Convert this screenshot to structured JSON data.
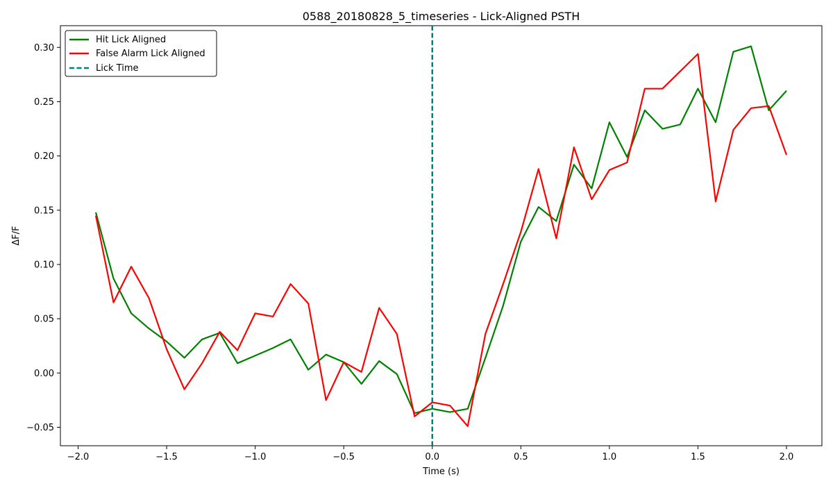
{
  "chart_data": {
    "type": "line",
    "title": "0588_20180828_5_timeseries - Lick-Aligned PSTH",
    "xlabel": "Time (s)",
    "ylabel": "ΔF/F",
    "xlim": [
      -2.1,
      2.2
    ],
    "ylim": [
      -0.067,
      0.32
    ],
    "x_ticks": [
      -2.0,
      -1.5,
      -1.0,
      -0.5,
      0.0,
      0.5,
      1.0,
      1.5,
      2.0
    ],
    "x_tick_labels": [
      "−2.0",
      "−1.5",
      "−1.0",
      "−0.5",
      "0.0",
      "0.5",
      "1.0",
      "1.5",
      "2.0"
    ],
    "y_ticks": [
      -0.05,
      0.0,
      0.05,
      0.1,
      0.15,
      0.2,
      0.25,
      0.3
    ],
    "y_tick_labels": [
      "−0.05",
      "0.00",
      "0.05",
      "0.10",
      "0.15",
      "0.20",
      "0.25",
      "0.30"
    ],
    "grid": false,
    "legend_position": "top-left",
    "x": [
      -1.9,
      -1.8,
      -1.7,
      -1.6,
      -1.5,
      -1.4,
      -1.3,
      -1.2,
      -1.1,
      -1.0,
      -0.9,
      -0.8,
      -0.7,
      -0.6,
      -0.5,
      -0.4,
      -0.3,
      -0.2,
      -0.1,
      0.0,
      0.1,
      0.2,
      0.3,
      0.4,
      0.5,
      0.6,
      0.7,
      0.8,
      0.9,
      1.0,
      1.1,
      1.2,
      1.3,
      1.4,
      1.5,
      1.6,
      1.7,
      1.8,
      1.9,
      2.0
    ],
    "series": [
      {
        "name": "Hit Lick Aligned",
        "color": "#008000",
        "style": "solid",
        "values": [
          0.148,
          0.087,
          0.055,
          0.041,
          0.029,
          0.014,
          0.031,
          0.037,
          0.009,
          0.016,
          0.023,
          0.031,
          0.003,
          0.017,
          0.01,
          -0.01,
          0.011,
          -0.001,
          -0.037,
          -0.033,
          -0.036,
          -0.033,
          0.014,
          0.062,
          0.121,
          0.153,
          0.14,
          0.192,
          0.17,
          0.231,
          0.199,
          0.242,
          0.225,
          0.229,
          0.262,
          0.231,
          0.296,
          0.301,
          0.242,
          0.26
        ]
      },
      {
        "name": "False Alarm Lick Aligned",
        "color": "#ff0000",
        "style": "solid",
        "values": [
          0.145,
          0.065,
          0.098,
          0.069,
          0.022,
          -0.015,
          0.009,
          0.038,
          0.021,
          0.055,
          0.052,
          0.082,
          0.064,
          -0.025,
          0.01,
          0.001,
          0.06,
          0.036,
          -0.04,
          -0.027,
          -0.03,
          -0.049,
          0.036,
          0.082,
          0.13,
          0.188,
          0.124,
          0.208,
          0.16,
          0.187,
          0.194,
          0.262,
          0.262,
          0.278,
          0.294,
          0.158,
          0.224,
          0.244,
          0.246,
          0.201
        ]
      }
    ],
    "vline": {
      "name": "Lick Time",
      "x": 0.0,
      "color": "#008080",
      "style": "dashed"
    }
  }
}
